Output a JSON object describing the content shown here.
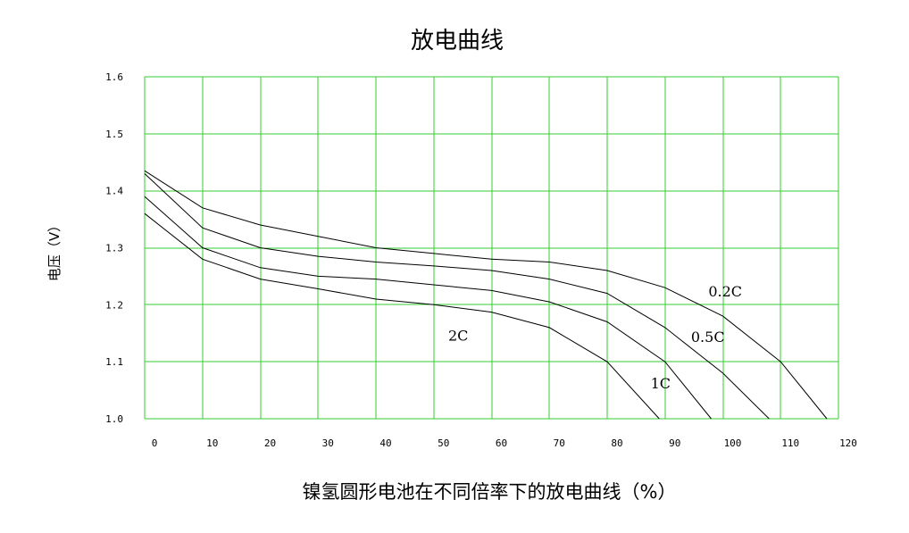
{
  "chart_data": {
    "type": "line",
    "title": "放电曲线",
    "xlabel": "镍氢圆形电池在不同倍率下的放电曲线（%）",
    "ylabel": "电压（V）",
    "xlim": [
      0,
      120
    ],
    "ylim": [
      1.0,
      1.6
    ],
    "x_ticks": [
      "0",
      "10",
      "20",
      "30",
      "40",
      "50",
      "60",
      "70",
      "80",
      "90",
      "100",
      "110",
      "120"
    ],
    "y_ticks": [
      "1.0",
      "1.1",
      "1.2",
      "1.3",
      "1.4",
      "1.5",
      "1.6"
    ],
    "grid": true,
    "colors": {
      "grid": "#33cc33",
      "curve": "#000000"
    },
    "series": [
      {
        "name": "0.2C",
        "x": [
          0,
          10,
          20,
          30,
          40,
          50,
          60,
          70,
          80,
          90,
          100,
          110,
          118
        ],
        "y": [
          1.435,
          1.37,
          1.34,
          1.32,
          1.3,
          1.29,
          1.28,
          1.275,
          1.26,
          1.23,
          1.18,
          1.1,
          1.0
        ]
      },
      {
        "name": "0.5C",
        "x": [
          0,
          10,
          20,
          30,
          40,
          50,
          60,
          70,
          80,
          90,
          100,
          108
        ],
        "y": [
          1.43,
          1.335,
          1.3,
          1.285,
          1.275,
          1.268,
          1.26,
          1.245,
          1.22,
          1.16,
          1.08,
          1.0
        ]
      },
      {
        "name": "1C",
        "x": [
          0,
          10,
          20,
          30,
          40,
          50,
          60,
          70,
          80,
          90,
          98
        ],
        "y": [
          1.39,
          1.3,
          1.265,
          1.25,
          1.245,
          1.235,
          1.225,
          1.205,
          1.17,
          1.1,
          1.0
        ]
      },
      {
        "name": "2C",
        "x": [
          0,
          10,
          20,
          30,
          40,
          50,
          60,
          70,
          80,
          89
        ],
        "y": [
          1.36,
          1.28,
          1.245,
          1.228,
          1.21,
          1.2,
          1.187,
          1.16,
          1.1,
          1.0
        ]
      }
    ],
    "series_label_at": [
      {
        "name": "0.2C",
        "x": 97.5,
        "y": 1.215
      },
      {
        "name": "0.5C",
        "x": 94.5,
        "y": 1.135
      },
      {
        "name": "1C",
        "x": 87.5,
        "y": 1.053
      },
      {
        "name": "2C",
        "x": 52.5,
        "y": 1.137
      }
    ]
  }
}
